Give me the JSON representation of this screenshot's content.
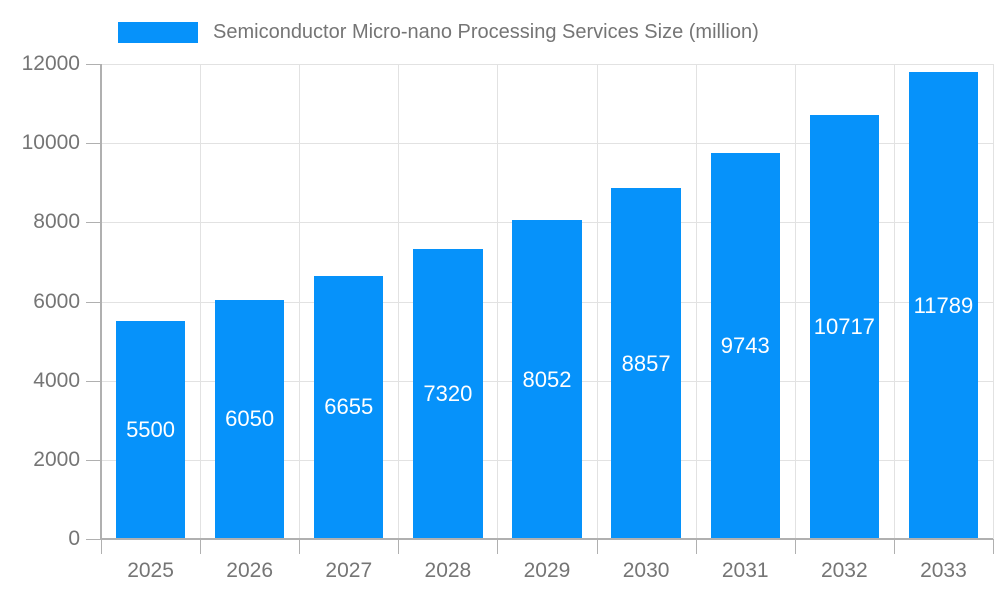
{
  "colors": {
    "bar": "#0692fa",
    "grid": "#e2e2e2",
    "axis": "#b0b0b0",
    "axis_text": "#757575",
    "bar_label_text": "#ffffff",
    "background": "#ffffff"
  },
  "legend": {
    "label": "Semiconductor Micro-nano Processing Services Size (million)"
  },
  "chart_data": {
    "type": "bar",
    "title": "Semiconductor Micro-nano Processing Services Size (million)",
    "series_name": "Semiconductor Micro-nano Processing Services Size (million)",
    "categories": [
      "2025",
      "2026",
      "2027",
      "2028",
      "2029",
      "2030",
      "2031",
      "2032",
      "2033"
    ],
    "values": [
      5500,
      6050,
      6655,
      7320,
      8052,
      8857,
      9743,
      10717,
      11789
    ],
    "bar_value_labels": [
      "5500",
      "6050",
      "6655",
      "7320",
      "8052",
      "8857",
      "9743",
      "10717",
      "11789"
    ],
    "xlabel": "",
    "ylabel": "",
    "ylim": [
      0,
      12000
    ],
    "ytick_step": 2000,
    "y_tick_labels": [
      "0",
      "2000",
      "4000",
      "6000",
      "8000",
      "10000",
      "12000"
    ],
    "grid": true,
    "legend_position": "top-left",
    "bar_label_position": "inside-middle",
    "bar_width_fraction": 0.7
  }
}
